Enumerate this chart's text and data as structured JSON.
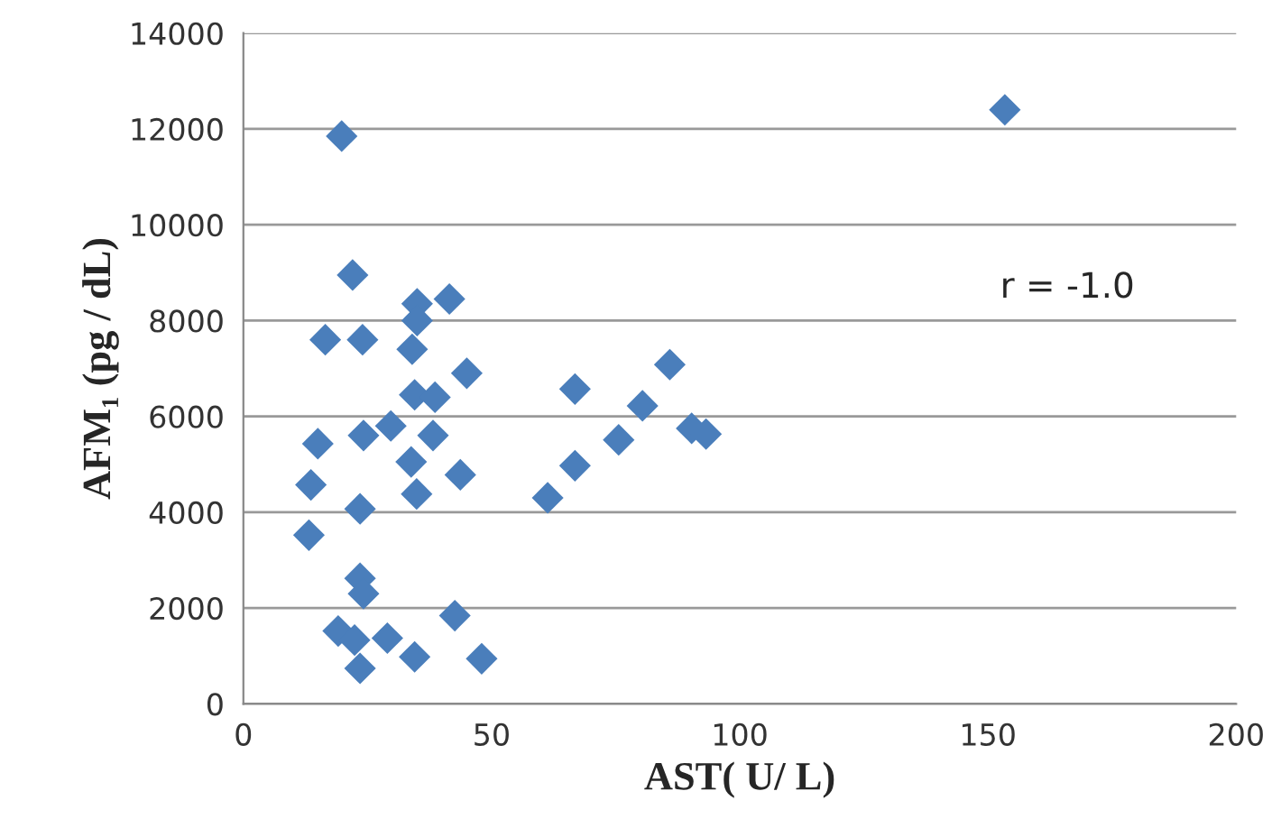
{
  "chart_data": {
    "type": "scatter",
    "xlabel": "AST( U/ L)",
    "ylabel": "AFM₁ (pg / dL)",
    "annotations": [
      "r = -1.0"
    ],
    "x": [
      19.8,
      153.4,
      22,
      16.5,
      24,
      35,
      41.5,
      34,
      35,
      45,
      34.5,
      38.6,
      29.7,
      15,
      24.2,
      38.2,
      33.8,
      43.7,
      13.6,
      34.9,
      23.5,
      13.2,
      23.5,
      24.2,
      42.6,
      19.1,
      22.4,
      29,
      34.5,
      48,
      23.5,
      66.8,
      85.9,
      80.4,
      75.6,
      66.8,
      61.3,
      90.3,
      93.2
    ],
    "values": [
      11850,
      12400,
      8950,
      7600,
      7600,
      8350,
      8450,
      7400,
      8000,
      6900,
      6450,
      6400,
      5800,
      5430,
      5600,
      5600,
      5050,
      4780,
      4570,
      4380,
      4070,
      3520,
      2620,
      2300,
      1840,
      1520,
      1330,
      1370,
      980,
      940,
      740,
      6570,
      7080,
      6220,
      5510,
      4970,
      4300,
      5750,
      5630
    ],
    "color": "#4a7ebb",
    "marker": "diamond",
    "grid": "y",
    "xlim": [
      0,
      200
    ],
    "xticks": [
      0,
      50,
      100,
      150,
      200
    ],
    "ylim": [
      0,
      14000
    ],
    "yticks": [
      0,
      2000,
      4000,
      6000,
      8000,
      10000,
      12000,
      14000
    ]
  }
}
